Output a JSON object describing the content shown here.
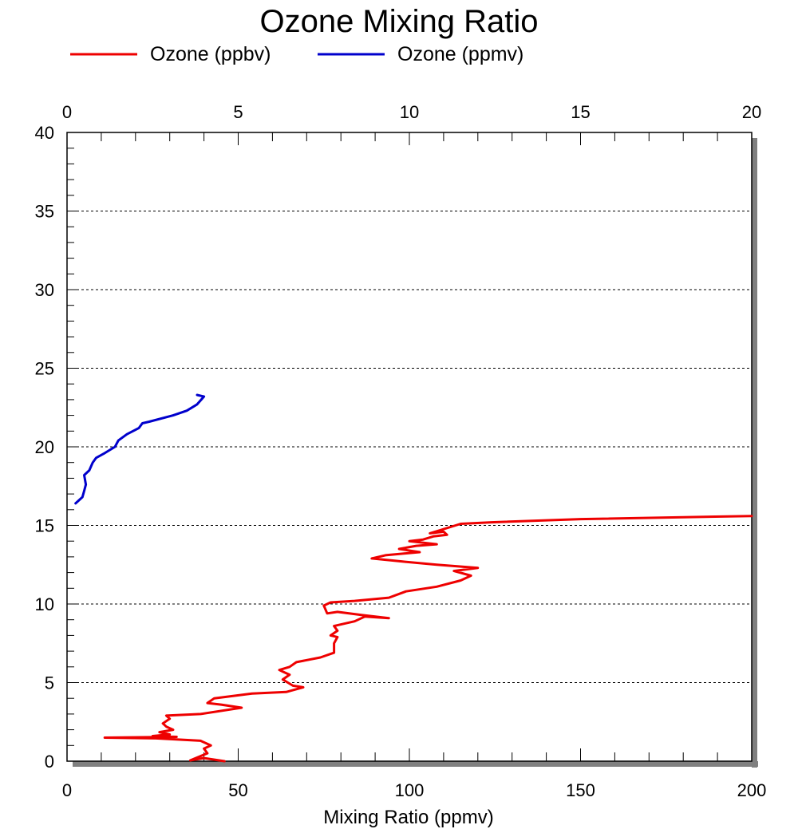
{
  "chart_data": {
    "type": "line",
    "title": "Ozone Mixing Ratio",
    "xlabel": "Mixing Ratio (ppmv)",
    "ylabel": "",
    "ylim": [
      0,
      40
    ],
    "yticks": [
      "0",
      "5",
      "10",
      "15",
      "20",
      "25",
      "30",
      "35",
      "40"
    ],
    "x_bottom": {
      "range": [
        0,
        200
      ],
      "ticks": [
        "0",
        "50",
        "100",
        "150",
        "200"
      ]
    },
    "x_top": {
      "range": [
        0,
        20
      ],
      "ticks": [
        "0",
        "5",
        "10",
        "15",
        "20"
      ]
    },
    "grid": "horizontal dotted",
    "legend": "top",
    "series": [
      {
        "name": "Ozone (ppbv)",
        "color": "#ee0000",
        "axis": "bottom",
        "points": [
          [
            46,
            0
          ],
          [
            40,
            0.2
          ],
          [
            36,
            0.05
          ],
          [
            41,
            0.5
          ],
          [
            40,
            0.8
          ],
          [
            42,
            1.0
          ],
          [
            39,
            1.3
          ],
          [
            26,
            1.45
          ],
          [
            11,
            1.5
          ],
          [
            32,
            1.55
          ],
          [
            25,
            1.6
          ],
          [
            30,
            1.7
          ],
          [
            27,
            1.85
          ],
          [
            31,
            2.0
          ],
          [
            29,
            2.2
          ],
          [
            28,
            2.4
          ],
          [
            30,
            2.7
          ],
          [
            29,
            2.9
          ],
          [
            39,
            3.0
          ],
          [
            51,
            3.4
          ],
          [
            45,
            3.6
          ],
          [
            41,
            3.7
          ],
          [
            43,
            4.0
          ],
          [
            54,
            4.3
          ],
          [
            64,
            4.4
          ],
          [
            69,
            4.7
          ],
          [
            66,
            4.8
          ],
          [
            63,
            5.2
          ],
          [
            65,
            5.5
          ],
          [
            63,
            5.7
          ],
          [
            62,
            5.8
          ],
          [
            65,
            6.0
          ],
          [
            67,
            6.3
          ],
          [
            74,
            6.6
          ],
          [
            78,
            6.9
          ],
          [
            78,
            7.5
          ],
          [
            79,
            7.9
          ],
          [
            77,
            8.0
          ],
          [
            79,
            8.3
          ],
          [
            78,
            8.6
          ],
          [
            84,
            8.9
          ],
          [
            87,
            9.2
          ],
          [
            94,
            9.1
          ],
          [
            86,
            9.3
          ],
          [
            79,
            9.5
          ],
          [
            76,
            9.4
          ],
          [
            75,
            9.9
          ],
          [
            77,
            10.1
          ],
          [
            84,
            10.2
          ],
          [
            94,
            10.4
          ],
          [
            99,
            10.8
          ],
          [
            108,
            11.1
          ],
          [
            115,
            11.5
          ],
          [
            118,
            11.8
          ],
          [
            113,
            12.1
          ],
          [
            120,
            12.3
          ],
          [
            108,
            12.5
          ],
          [
            98,
            12.7
          ],
          [
            89,
            12.9
          ],
          [
            93,
            13.1
          ],
          [
            103,
            13.3
          ],
          [
            97,
            13.5
          ],
          [
            102,
            13.7
          ],
          [
            108,
            13.8
          ],
          [
            100,
            14.0
          ],
          [
            104,
            14.1
          ],
          [
            107,
            14.3
          ],
          [
            111,
            14.4
          ],
          [
            110,
            14.6
          ],
          [
            106,
            14.5
          ],
          [
            112,
            14.9
          ],
          [
            115,
            15.1
          ],
          [
            124,
            15.2
          ],
          [
            150,
            15.4
          ],
          [
            200,
            15.6
          ]
        ]
      },
      {
        "name": "Ozone (ppmv)",
        "color": "#0000cc",
        "axis": "top",
        "points": [
          [
            0.25,
            16.4
          ],
          [
            0.45,
            16.8
          ],
          [
            0.5,
            17.2
          ],
          [
            0.55,
            17.6
          ],
          [
            0.5,
            18.2
          ],
          [
            0.65,
            18.5
          ],
          [
            0.75,
            19.0
          ],
          [
            0.85,
            19.3
          ],
          [
            1.1,
            19.6
          ],
          [
            1.4,
            20.0
          ],
          [
            1.5,
            20.4
          ],
          [
            1.75,
            20.8
          ],
          [
            2.1,
            21.2
          ],
          [
            2.2,
            21.5
          ],
          [
            2.4,
            21.6
          ],
          [
            3.1,
            22.0
          ],
          [
            3.5,
            22.3
          ],
          [
            3.8,
            22.7
          ],
          [
            4.0,
            23.2
          ],
          [
            3.8,
            23.3
          ]
        ]
      }
    ]
  }
}
